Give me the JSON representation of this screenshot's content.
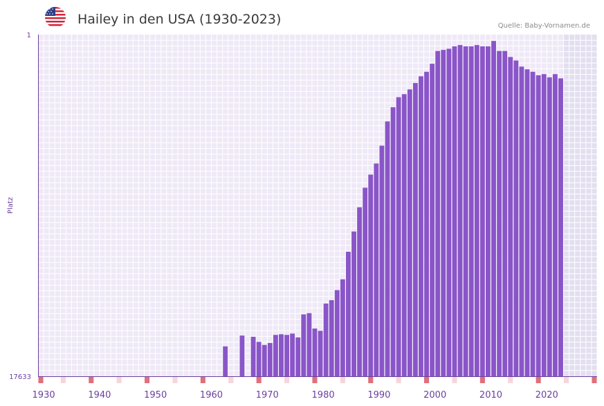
{
  "header": {
    "title": "Hailey in den USA (1930-2023)",
    "source": "Quelle: Baby-Vornamen.de",
    "flag_icon": "usa-flag-icon"
  },
  "colors": {
    "bar": "#8a55c8",
    "plot_bg": "#efe9f7",
    "future_bg": "#e3dff0",
    "grid": "#ffffff",
    "axis": "#6a3fa0",
    "marker_strong": "#e07079",
    "marker_light": "#f6d6da"
  },
  "chart_data": {
    "type": "bar",
    "title": "Hailey in den USA (1930-2023)",
    "xlabel": "",
    "ylabel": "Platz",
    "y_axis_inverted": true,
    "y_scale": "log",
    "ylim": [
      1,
      17633
    ],
    "ytick_labels": [
      "1",
      "17633"
    ],
    "xlim": [
      1929,
      2029
    ],
    "xtick_labels": [
      "1930",
      "1940",
      "1950",
      "1960",
      "1970",
      "1980",
      "1990",
      "2000",
      "2010",
      "2020"
    ],
    "xtick_values": [
      1930,
      1940,
      1950,
      1960,
      1970,
      1980,
      1990,
      2000,
      2010,
      2020
    ],
    "future_shade_from": 2023,
    "series": [
      {
        "name": "Platz",
        "x": [
          1962,
          1965,
          1967,
          1968,
          1969,
          1970,
          1971,
          1972,
          1973,
          1974,
          1975,
          1976,
          1977,
          1978,
          1979,
          1980,
          1981,
          1982,
          1983,
          1984,
          1985,
          1986,
          1987,
          1988,
          1989,
          1990,
          1991,
          1992,
          1993,
          1994,
          1995,
          1996,
          1997,
          1998,
          1999,
          2000,
          2001,
          2002,
          2003,
          2004,
          2005,
          2006,
          2007,
          2008,
          2009,
          2010,
          2011,
          2012,
          2013,
          2014,
          2015,
          2016,
          2017,
          2018,
          2019,
          2020,
          2021,
          2022
        ],
        "values": [
          7500,
          5500,
          5700,
          6600,
          7200,
          6800,
          5400,
          5300,
          5400,
          5200,
          5800,
          3000,
          2900,
          4500,
          4800,
          2200,
          2000,
          1500,
          1100,
          500,
          280,
          140,
          80,
          55,
          40,
          24,
          12,
          8,
          6,
          5.5,
          4.8,
          4,
          3.3,
          2.9,
          2.3,
          1.6,
          1.55,
          1.5,
          1.4,
          1.35,
          1.4,
          1.4,
          1.35,
          1.4,
          1.4,
          1.2,
          1.6,
          1.6,
          1.9,
          2.1,
          2.5,
          2.7,
          2.9,
          3.2,
          3.1,
          3.4,
          3.1,
          3.5
        ]
      }
    ],
    "decade_markers": [
      1929,
      1938,
      1948,
      1958,
      1968,
      1978,
      1988,
      1998,
      2008,
      2018,
      2028
    ],
    "minor_markers": [
      1933,
      1943,
      1953,
      1963,
      1973,
      1983,
      1993,
      2003,
      2013,
      2023
    ]
  }
}
